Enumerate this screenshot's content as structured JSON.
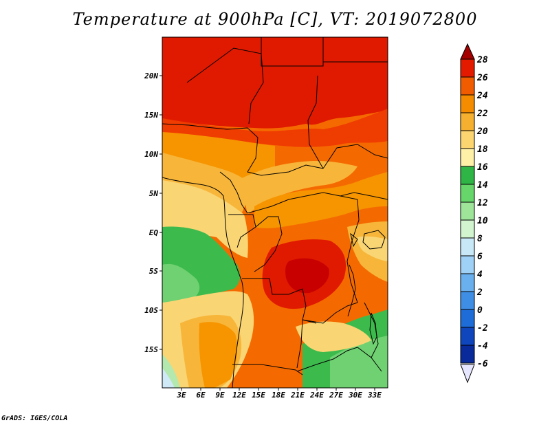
{
  "title": "Temperature at 900hPa [C], VT: 2019072800",
  "credit": "GrADS: IGES/COLA",
  "map": {
    "lat_labels": [
      "20N",
      "15N",
      "10N",
      "5N",
      "EQ",
      "5S",
      "10S",
      "15S"
    ],
    "lon_labels": [
      "3E",
      "6E",
      "9E",
      "12E",
      "15E",
      "18E",
      "21E",
      "24E",
      "27E",
      "30E",
      "33E"
    ]
  },
  "colorbar": {
    "levels": [
      "28",
      "26",
      "24",
      "22",
      "20",
      "18",
      "16",
      "14",
      "12",
      "10",
      "8",
      "6",
      "4",
      "2",
      "0",
      "-2",
      "-4",
      "-6"
    ],
    "colors": [
      "#a50000",
      "#e31a00",
      "#f25c00",
      "#f58c00",
      "#f6b030",
      "#fcd570",
      "#fff0a8",
      "#2fb545",
      "#66d66a",
      "#9ee59a",
      "#d2f5cf",
      "#c8e8f8",
      "#9fd0f5",
      "#6ab0ef",
      "#3f8ee6",
      "#1d6cd8",
      "#0f46bd",
      "#082a9a",
      "#e6e6ff"
    ]
  },
  "legend_colors": {
    "t28plus": "#e01a00",
    "t26": "#ef3c00",
    "t24": "#f56a00",
    "t22": "#f79500",
    "t20": "#f7b63a",
    "t18": "#fad574",
    "t16": "#fde89e",
    "t14": "#3dba4c",
    "t12": "#6fd171",
    "t10": "#b3e8ae",
    "t6": "#cfe9f6"
  }
}
